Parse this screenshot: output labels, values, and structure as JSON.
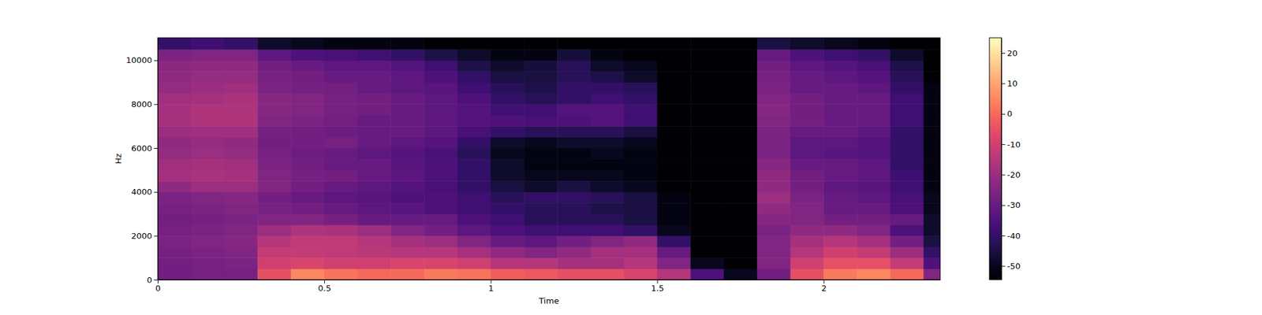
{
  "chart_data": {
    "type": "heatmap",
    "x_label": "Time",
    "y_label": "Hz",
    "xlim": [
      0,
      2.35
    ],
    "xticks": [
      0,
      0.5,
      1,
      1.5,
      2
    ],
    "ylim": [
      0,
      11025
    ],
    "yticks": [
      0,
      2000,
      4000,
      6000,
      8000,
      10000
    ],
    "time_bins": [
      0,
      0.1,
      0.2,
      0.3,
      0.4,
      0.5,
      0.6,
      0.7,
      0.8,
      0.9,
      1.0,
      1.1,
      1.2,
      1.3,
      1.4,
      1.5,
      1.6,
      1.7,
      1.8,
      1.9,
      2.0,
      2.1,
      2.2,
      2.3,
      2.35
    ],
    "freq_bins": [
      0,
      500,
      1000,
      1500,
      2000,
      2500,
      3000,
      3500,
      4000,
      4500,
      5000,
      5500,
      6000,
      6500,
      7000,
      7500,
      8000,
      8500,
      9000,
      9500,
      10000,
      10500,
      11025
    ],
    "cells": [
      [
        -28,
        -27,
        -27,
        -5,
        5,
        2,
        0,
        0,
        3,
        2,
        -2,
        -3,
        -5,
        -5,
        -8,
        -15,
        -35,
        -50,
        -28,
        -5,
        3,
        5,
        0,
        -25
      ],
      [
        -28,
        -27,
        -26,
        -10,
        -8,
        -10,
        -10,
        -8,
        -8,
        -10,
        -15,
        -15,
        -18,
        -18,
        -15,
        -25,
        -50,
        -54,
        -25,
        -10,
        -5,
        -5,
        -12,
        -35
      ],
      [
        -27,
        -26,
        -25,
        -12,
        -12,
        -13,
        -14,
        -15,
        -15,
        -18,
        -22,
        -25,
        -22,
        -18,
        -18,
        -30,
        -54,
        -54,
        -25,
        -15,
        -10,
        -12,
        -20,
        -40
      ],
      [
        -26,
        -25,
        -24,
        -15,
        -13,
        -13,
        -15,
        -18,
        -20,
        -25,
        -30,
        -32,
        -28,
        -25,
        -22,
        -40,
        -54,
        -54,
        -25,
        -18,
        -15,
        -18,
        -28,
        -45
      ],
      [
        -27,
        -26,
        -25,
        -20,
        -16,
        -17,
        -20,
        -25,
        -28,
        -32,
        -35,
        -38,
        -38,
        -38,
        -40,
        -50,
        -54,
        -54,
        -26,
        -22,
        -22,
        -25,
        -35,
        -48
      ],
      [
        -28,
        -27,
        -26,
        -25,
        -25,
        -27,
        -30,
        -30,
        -30,
        -35,
        -38,
        -42,
        -42,
        -42,
        -45,
        -52,
        -54,
        -54,
        -24,
        -25,
        -28,
        -28,
        -30,
        -48
      ],
      [
        -27,
        -26,
        -25,
        -27,
        -28,
        -30,
        -32,
        -33,
        -35,
        -38,
        -40,
        -42,
        -42,
        -44,
        -45,
        -52,
        -54,
        -54,
        -22,
        -25,
        -30,
        -30,
        -35,
        -50
      ],
      [
        -26,
        -25,
        -24,
        -28,
        -30,
        -32,
        -33,
        -35,
        -35,
        -38,
        -42,
        -40,
        -40,
        -42,
        -45,
        -52,
        -54,
        -54,
        -20,
        -26,
        -30,
        -32,
        -36,
        -50
      ],
      [
        -22,
        -20,
        -20,
        -25,
        -28,
        -30,
        -32,
        -34,
        -36,
        -40,
        -45,
        -48,
        -45,
        -48,
        -50,
        -54,
        -54,
        -54,
        -22,
        -28,
        -32,
        -33,
        -38,
        -52
      ],
      [
        -18,
        -17,
        -18,
        -25,
        -27,
        -28,
        -30,
        -32,
        -35,
        -40,
        -48,
        -50,
        -50,
        -50,
        -52,
        -54,
        -54,
        -54,
        -22,
        -28,
        -30,
        -32,
        -38,
        -52
      ],
      [
        -19,
        -18,
        -19,
        -26,
        -28,
        -30,
        -30,
        -33,
        -35,
        -40,
        -48,
        -52,
        -52,
        -52,
        -52,
        -54,
        -54,
        -54,
        -24,
        -30,
        -30,
        -32,
        -40,
        -52
      ],
      [
        -21,
        -20,
        -21,
        -27,
        -29,
        -30,
        -32,
        -34,
        -36,
        -42,
        -50,
        -52,
        -52,
        -50,
        -52,
        -54,
        -54,
        -54,
        -26,
        -32,
        -33,
        -34,
        -40,
        -52
      ],
      [
        -22,
        -21,
        -22,
        -28,
        -28,
        -27,
        -30,
        -32,
        -34,
        -40,
        -48,
        -50,
        -48,
        -48,
        -50,
        -54,
        -54,
        -54,
        -26,
        -32,
        -32,
        -34,
        -40,
        -52
      ],
      [
        -20,
        -19,
        -19,
        -27,
        -28,
        -29,
        -30,
        -30,
        -32,
        -36,
        -40,
        -42,
        -42,
        -42,
        -45,
        -54,
        -54,
        -54,
        -26,
        -30,
        -30,
        -32,
        -40,
        -52
      ],
      [
        -18,
        -16,
        -16,
        -25,
        -26,
        -28,
        -30,
        -30,
        -32,
        -34,
        -35,
        -36,
        -35,
        -34,
        -38,
        -54,
        -54,
        -54,
        -25,
        -28,
        -30,
        -30,
        -38,
        -52
      ],
      [
        -18,
        -16,
        -16,
        -24,
        -25,
        -27,
        -28,
        -30,
        -32,
        -34,
        -38,
        -38,
        -34,
        -34,
        -38,
        -54,
        -54,
        -54,
        -24,
        -28,
        -30,
        -30,
        -38,
        -52
      ],
      [
        -19,
        -18,
        -17,
        -24,
        -25,
        -27,
        -28,
        -30,
        -32,
        -35,
        -40,
        -42,
        -40,
        -38,
        -40,
        -54,
        -54,
        -54,
        -25,
        -28,
        -30,
        -30,
        -38,
        -52
      ],
      [
        -21,
        -20,
        -19,
        -26,
        -27,
        -28,
        -30,
        -32,
        -33,
        -38,
        -42,
        -44,
        -40,
        -40,
        -42,
        -54,
        -54,
        -54,
        -26,
        -30,
        -30,
        -32,
        -40,
        -52
      ],
      [
        -22,
        -21,
        -21,
        -27,
        -28,
        -30,
        -30,
        -32,
        -35,
        -40,
        -45,
        -45,
        -42,
        -44,
        -48,
        -54,
        -54,
        -54,
        -27,
        -30,
        -32,
        -34,
        -42,
        -54
      ],
      [
        -23,
        -22,
        -22,
        -28,
        -30,
        -32,
        -32,
        -34,
        -38,
        -44,
        -48,
        -46,
        -42,
        -48,
        -50,
        -54,
        -54,
        -54,
        -28,
        -32,
        -34,
        -36,
        -44,
        -54
      ],
      [
        -26,
        -25,
        -25,
        -32,
        -35,
        -36,
        -38,
        -40,
        -44,
        -48,
        -52,
        -52,
        -46,
        -52,
        -54,
        -54,
        -54,
        -54,
        -30,
        -35,
        -38,
        -40,
        -48,
        -54
      ],
      [
        -40,
        -38,
        -40,
        -48,
        -50,
        -52,
        -52,
        -52,
        -54,
        -54,
        -54,
        -54,
        -54,
        -54,
        -54,
        -54,
        -54,
        -54,
        -45,
        -48,
        -50,
        -52,
        -54,
        -54
      ]
    ],
    "colorbar": {
      "range": [
        -54.5,
        25
      ],
      "ticks": [
        -50,
        -40,
        -30,
        -20,
        -10,
        0,
        10,
        20
      ]
    }
  }
}
